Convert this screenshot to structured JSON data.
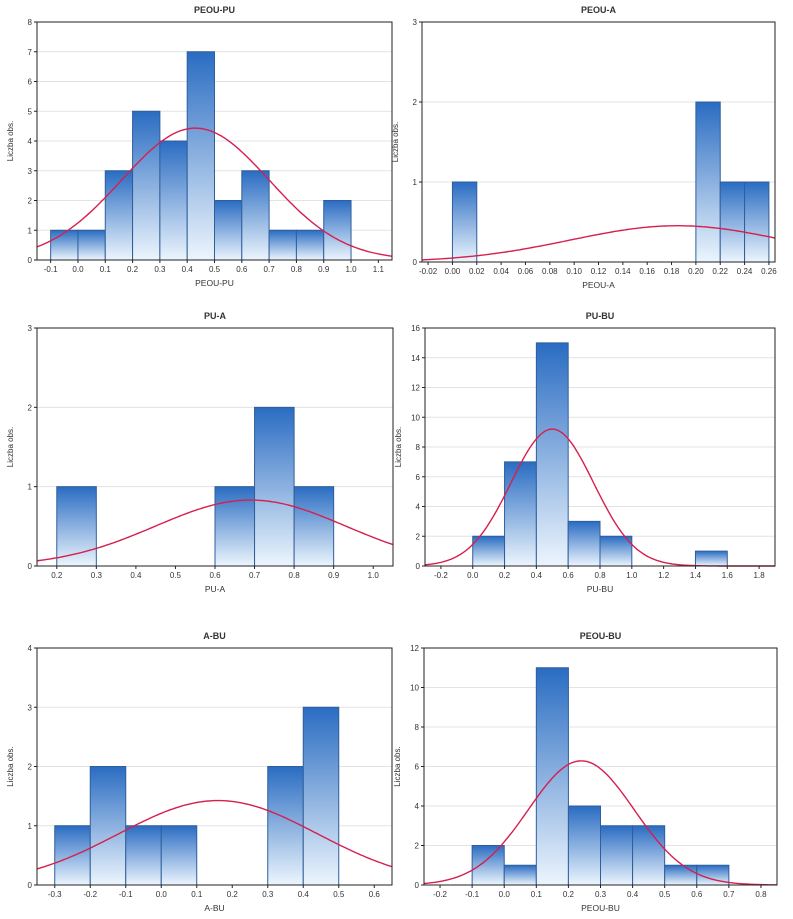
{
  "colors": {
    "bar_top": "#2a6cc2",
    "bar_bottom": "#ecf5fd",
    "bar_stroke": "#2f5f9a",
    "curve": "#d61f4e"
  },
  "chart_data": [
    {
      "type": "bar",
      "title": "PEOU-PU",
      "xlabel": "PEOU-PU",
      "ylabel": "Liczba obs.",
      "xlim": [
        -0.15,
        1.15
      ],
      "ylim": [
        0,
        8
      ],
      "xticks": [
        "-0.1",
        "0.0",
        "0.1",
        "0.2",
        "0.3",
        "0.4",
        "0.5",
        "0.6",
        "0.7",
        "0.8",
        "0.9",
        "1.0",
        "1.1"
      ],
      "xtick_values": [
        -0.1,
        0.0,
        0.1,
        0.2,
        0.3,
        0.4,
        0.5,
        0.6,
        0.7,
        0.8,
        0.9,
        1.0,
        1.1
      ],
      "yticks": [
        0,
        1,
        2,
        3,
        4,
        5,
        6,
        7,
        8
      ],
      "bins": [
        [
          -0.1,
          0.0
        ],
        [
          0.0,
          0.1
        ],
        [
          0.1,
          0.2
        ],
        [
          0.2,
          0.3
        ],
        [
          0.3,
          0.4
        ],
        [
          0.4,
          0.5
        ],
        [
          0.5,
          0.6
        ],
        [
          0.6,
          0.7
        ],
        [
          0.7,
          0.8
        ],
        [
          0.8,
          0.9
        ],
        [
          0.9,
          1.0
        ]
      ],
      "values": [
        1,
        1,
        3,
        5,
        4,
        7,
        2,
        3,
        1,
        1,
        2
      ],
      "normal_fit": {
        "mean": 0.43,
        "sd": 0.27,
        "n": 30,
        "binwidth": 0.1
      }
    },
    {
      "type": "bar",
      "title": "PEOU-A",
      "xlabel": "PEOU-A",
      "ylabel": "Liczba obs.",
      "xlim": [
        -0.025,
        0.265
      ],
      "ylim": [
        0,
        3
      ],
      "xticks": [
        "-0.02",
        "0.00",
        "0.02",
        "0.04",
        "0.06",
        "0.08",
        "0.10",
        "0.12",
        "0.14",
        "0.16",
        "0.18",
        "0.20",
        "0.22",
        "0.24",
        "0.26"
      ],
      "xtick_values": [
        -0.02,
        0.0,
        0.02,
        0.04,
        0.06,
        0.08,
        0.1,
        0.12,
        0.14,
        0.16,
        0.18,
        0.2,
        0.22,
        0.24,
        0.26
      ],
      "yticks": [
        0,
        1,
        2,
        3
      ],
      "bins": [
        [
          0.0,
          0.02
        ],
        [
          0.2,
          0.22
        ],
        [
          0.22,
          0.24
        ],
        [
          0.24,
          0.26
        ]
      ],
      "values": [
        1,
        2,
        1,
        1
      ],
      "normal_fit": {
        "mean": 0.185,
        "sd": 0.088,
        "n": 5,
        "binwidth": 0.02
      }
    },
    {
      "type": "bar",
      "title": "PU-A",
      "xlabel": "PU-A",
      "ylabel": "Liczba obs.",
      "xlim": [
        0.15,
        1.05
      ],
      "ylim": [
        0,
        3
      ],
      "xticks": [
        "0.2",
        "0.3",
        "0.4",
        "0.5",
        "0.6",
        "0.7",
        "0.8",
        "0.9",
        "1.0"
      ],
      "xtick_values": [
        0.2,
        0.3,
        0.4,
        0.5,
        0.6,
        0.7,
        0.8,
        0.9,
        1.0
      ],
      "yticks": [
        0,
        1,
        2,
        3
      ],
      "bins": [
        [
          0.2,
          0.3
        ],
        [
          0.6,
          0.7
        ],
        [
          0.7,
          0.8
        ],
        [
          0.8,
          0.9
        ]
      ],
      "values": [
        1,
        1,
        2,
        1
      ],
      "normal_fit": {
        "mean": 0.69,
        "sd": 0.24,
        "n": 5,
        "binwidth": 0.1
      }
    },
    {
      "type": "bar",
      "title": "PU-BU",
      "xlabel": "PU-BU",
      "ylabel": "Liczba obs.",
      "xlim": [
        -0.3,
        1.9
      ],
      "ylim": [
        0,
        16
      ],
      "xticks": [
        "-0.2",
        "0.0",
        "0.2",
        "0.4",
        "0.6",
        "0.8",
        "1.0",
        "1.2",
        "1.4",
        "1.6",
        "1.8"
      ],
      "xtick_values": [
        -0.2,
        0.0,
        0.2,
        0.4,
        0.6,
        0.8,
        1.0,
        1.2,
        1.4,
        1.6,
        1.8
      ],
      "yticks": [
        0,
        2,
        4,
        6,
        8,
        10,
        12,
        14,
        16
      ],
      "bins": [
        [
          0.0,
          0.2
        ],
        [
          0.2,
          0.4
        ],
        [
          0.4,
          0.6
        ],
        [
          0.6,
          0.8
        ],
        [
          0.8,
          1.0
        ],
        [
          1.4,
          1.6
        ]
      ],
      "values": [
        2,
        7,
        15,
        3,
        2,
        1
      ],
      "normal_fit": {
        "mean": 0.5,
        "sd": 0.26,
        "n": 30,
        "binwidth": 0.2
      }
    },
    {
      "type": "bar",
      "title": "A-BU",
      "xlabel": "A-BU",
      "ylabel": "Liczba obs.",
      "xlim": [
        -0.35,
        0.65
      ],
      "ylim": [
        0,
        4
      ],
      "xticks": [
        "-0.3",
        "-0.2",
        "-0.1",
        "0.0",
        "0.1",
        "0.2",
        "0.3",
        "0.4",
        "0.5",
        "0.6"
      ],
      "xtick_values": [
        -0.3,
        -0.2,
        -0.1,
        0.0,
        0.1,
        0.2,
        0.3,
        0.4,
        0.5,
        0.6
      ],
      "yticks": [
        0,
        1,
        2,
        3,
        4
      ],
      "bins": [
        [
          -0.3,
          -0.2
        ],
        [
          -0.2,
          -0.1
        ],
        [
          -0.1,
          0.0
        ],
        [
          0.0,
          0.1
        ],
        [
          0.3,
          0.4
        ],
        [
          0.4,
          0.5
        ]
      ],
      "values": [
        1,
        2,
        1,
        1,
        2,
        3
      ],
      "normal_fit": {
        "mean": 0.16,
        "sd": 0.28,
        "n": 10,
        "binwidth": 0.1
      }
    },
    {
      "type": "bar",
      "title": "PEOU-BU",
      "xlabel": "PEOU-BU",
      "ylabel": "Liczba obs.",
      "xlim": [
        -0.25,
        0.85
      ],
      "ylim": [
        0,
        12
      ],
      "xticks": [
        "-0.2",
        "-0.1",
        "0.0",
        "0.1",
        "0.2",
        "0.3",
        "0.4",
        "0.5",
        "0.6",
        "0.7",
        "0.8"
      ],
      "xtick_values": [
        -0.2,
        -0.1,
        0.0,
        0.1,
        0.2,
        0.3,
        0.4,
        0.5,
        0.6,
        0.7,
        0.8
      ],
      "yticks": [
        0,
        2,
        4,
        6,
        8,
        10,
        12
      ],
      "bins": [
        [
          -0.1,
          0.0
        ],
        [
          0.0,
          0.1
        ],
        [
          0.1,
          0.2
        ],
        [
          0.2,
          0.3
        ],
        [
          0.3,
          0.4
        ],
        [
          0.4,
          0.5
        ],
        [
          0.5,
          0.6
        ],
        [
          0.6,
          0.7
        ]
      ],
      "values": [
        2,
        1,
        11,
        4,
        3,
        3,
        1,
        1
      ],
      "normal_fit": {
        "mean": 0.24,
        "sd": 0.165,
        "n": 26,
        "binwidth": 0.1
      }
    }
  ]
}
